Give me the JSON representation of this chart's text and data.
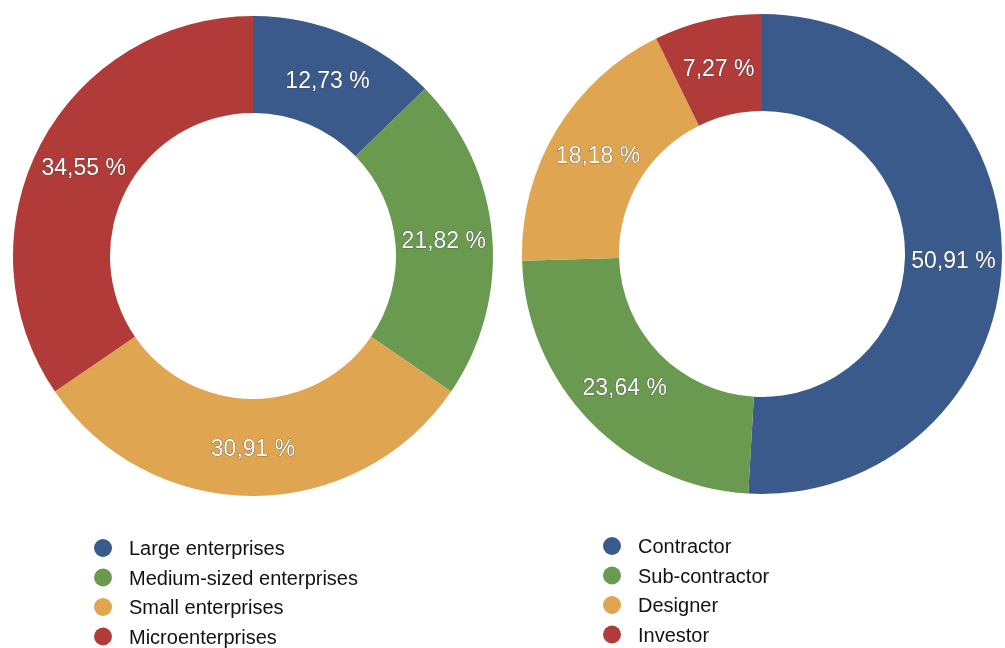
{
  "chart_data": [
    {
      "type": "donut",
      "categories": [
        "Large enterprises",
        "Medium-sized enterprises",
        "Small enterprises",
        "Microenterprises"
      ],
      "values": [
        12.73,
        21.82,
        30.91,
        34.55
      ],
      "colors": [
        "#3b5a8c",
        "#6a9950",
        "#e0a551",
        "#b03b38"
      ],
      "value_labels": [
        "12,73 %",
        "21,82 %",
        "30,91 %",
        "34,55 %"
      ],
      "legend": "bottom"
    },
    {
      "type": "donut",
      "categories": [
        "Contractor",
        "Sub-contractor",
        "Designer",
        "Investor"
      ],
      "values": [
        50.91,
        23.64,
        18.18,
        7.27
      ],
      "colors": [
        "#3b5a8c",
        "#6a9950",
        "#e0a551",
        "#b03b38"
      ],
      "value_labels": [
        "50,91 %",
        "23,64 %",
        "18,18 %",
        "7,27 %"
      ],
      "legend": "bottom"
    }
  ]
}
